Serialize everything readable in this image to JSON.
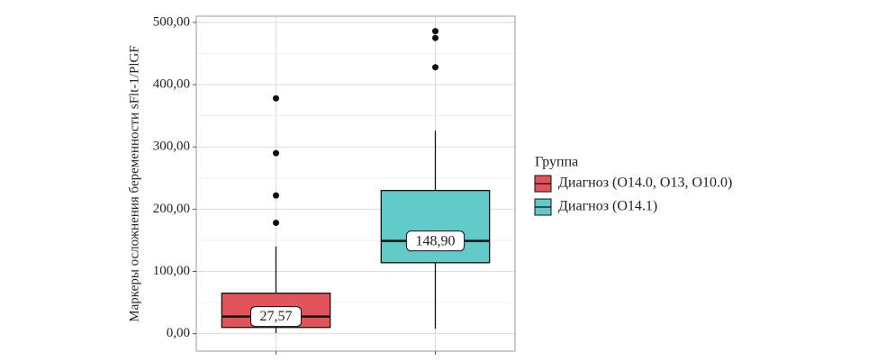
{
  "chart_data": {
    "type": "box",
    "ylabel": "Маркеры осложнения беременности sFlt-1/PlGF",
    "ylim": [
      -28,
      510
    ],
    "yticks": [
      {
        "value": 0,
        "label": "0,00"
      },
      {
        "value": 100,
        "label": "100,00"
      },
      {
        "value": 200,
        "label": "200,00"
      },
      {
        "value": 300,
        "label": "300,00"
      },
      {
        "value": 400,
        "label": "400,00"
      },
      {
        "value": 500,
        "label": "500,00"
      }
    ],
    "minor_yticks": [
      50,
      150,
      250,
      350,
      450
    ],
    "grid": true,
    "legend_title": "Группа",
    "legend_position": "right",
    "series": [
      {
        "name": "Диагноз (O14.0, O13, O10.0)",
        "color": "#e2545a",
        "min": 1,
        "q1": 10,
        "median": 27.57,
        "q3": 65,
        "max": 140,
        "outliers": [
          178,
          222,
          290,
          378
        ],
        "value_labels": [
          "27,57"
        ]
      },
      {
        "name": "Диагноз (O14.1)",
        "color": "#62c9c9",
        "min": 8,
        "q1": 114,
        "median": 148.9,
        "q3": 230,
        "max": 326,
        "outliers": [
          428,
          475,
          486
        ],
        "value_labels": [
          "148,90"
        ]
      }
    ]
  }
}
